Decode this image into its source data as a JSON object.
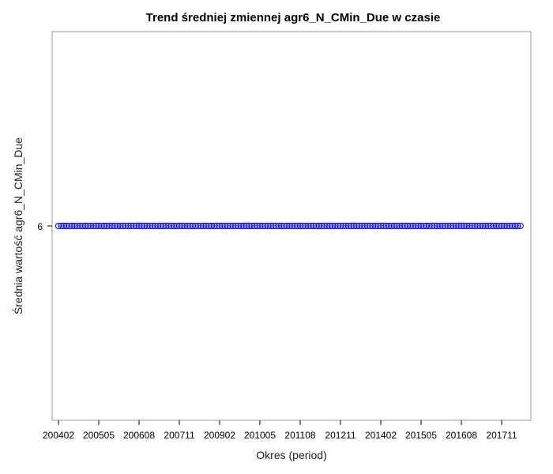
{
  "chart_data": {
    "type": "line",
    "title": "Trend średniej zmiennej agr6_N_CMin_Due w czasie",
    "xlabel": "Okres (period)",
    "ylabel": "Średnia wartość agr6_N_CMin_Due",
    "x_tick_labels": [
      "200402",
      "200505",
      "200608",
      "200711",
      "200902",
      "201005",
      "201108",
      "201211",
      "201402",
      "201505",
      "201608",
      "201711"
    ],
    "y_ticks": [
      6
    ],
    "ylim": [
      5,
      7
    ],
    "x_start": "200402",
    "x_end": "201806",
    "series": [
      {
        "marker": "circle",
        "color": "#0000ff",
        "constant_value": 6
      }
    ],
    "grid": false,
    "legend": "none"
  }
}
